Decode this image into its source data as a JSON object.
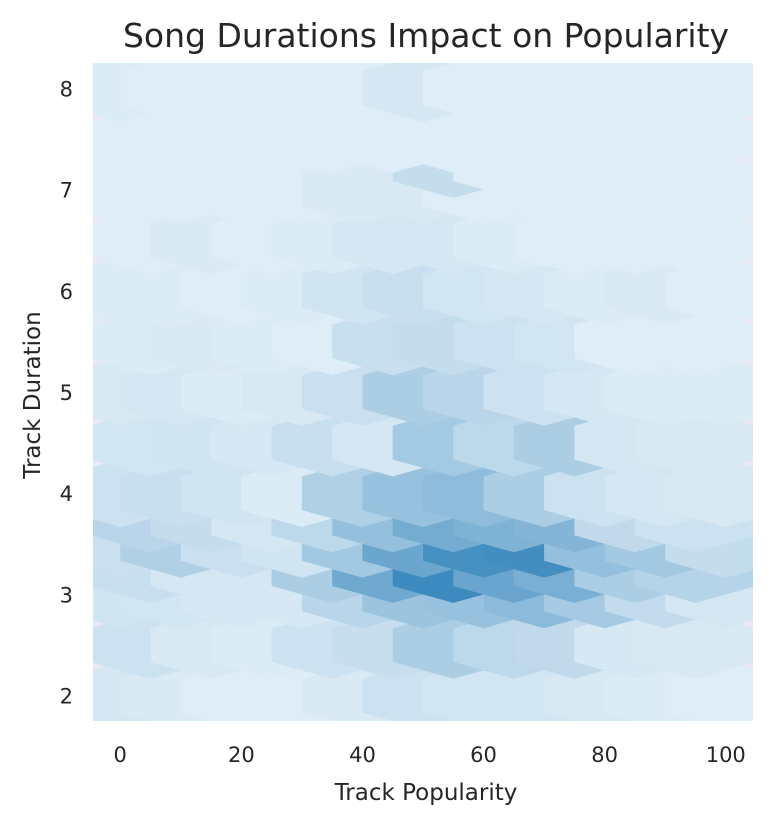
{
  "chart_data": {
    "type": "hexbin",
    "title": "Song Durations Impact on Popularity",
    "xlabel": "Track Popularity",
    "ylabel": "Track Duration",
    "xlim": [
      -4.5,
      104.5
    ],
    "ylim": [
      1.75,
      8.25
    ],
    "xticks": [
      0,
      20,
      40,
      60,
      80,
      100
    ],
    "yticks": [
      2,
      3,
      4,
      5,
      6,
      7,
      8
    ],
    "grid": false,
    "colormap": "light-to-dark blue (white to #1f77b4)",
    "background_color": "#eae9f2",
    "max_color": "#1f77b4",
    "hex_grid": {
      "x_step": 20,
      "y_step": 1,
      "x_origin": 0,
      "y_origin": 2
    },
    "bins": [
      {
        "x": 0,
        "y": 2,
        "v": 0.1
      },
      {
        "x": 10,
        "y": 2,
        "v": 0.07
      },
      {
        "x": 20,
        "y": 2,
        "v": 0.05
      },
      {
        "x": 30,
        "y": 2,
        "v": 0.05
      },
      {
        "x": 40,
        "y": 2,
        "v": 0.07
      },
      {
        "x": 50,
        "y": 2,
        "v": 0.14
      },
      {
        "x": 60,
        "y": 2,
        "v": 0.11
      },
      {
        "x": 70,
        "y": 2,
        "v": 0.11
      },
      {
        "x": 80,
        "y": 2,
        "v": 0.08
      },
      {
        "x": 90,
        "y": 2,
        "v": 0.06
      },
      {
        "x": 100,
        "y": 2,
        "v": 0.05
      },
      {
        "x": 5,
        "y": 2.5,
        "v": 0.14
      },
      {
        "x": 15,
        "y": 2.5,
        "v": 0.08
      },
      {
        "x": 25,
        "y": 2.5,
        "v": 0.06
      },
      {
        "x": 35,
        "y": 2.5,
        "v": 0.13
      },
      {
        "x": 45,
        "y": 2.5,
        "v": 0.17
      },
      {
        "x": 55,
        "y": 2.5,
        "v": 0.3
      },
      {
        "x": 65,
        "y": 2.5,
        "v": 0.22
      },
      {
        "x": 75,
        "y": 2.5,
        "v": 0.2
      },
      {
        "x": 85,
        "y": 2.5,
        "v": 0.09
      },
      {
        "x": 95,
        "y": 2.5,
        "v": 0.08
      },
      {
        "x": 0,
        "y": 3,
        "v": 0.12
      },
      {
        "x": 10,
        "y": 3,
        "v": 0.11
      },
      {
        "x": 20,
        "y": 3,
        "v": 0.09
      },
      {
        "x": 30,
        "y": 3,
        "v": 0.09
      },
      {
        "x": 40,
        "y": 3,
        "v": 0.24
      },
      {
        "x": 50,
        "y": 3,
        "v": 0.38
      },
      {
        "x": 60,
        "y": 3,
        "v": 0.4
      },
      {
        "x": 70,
        "y": 3,
        "v": 0.46
      },
      {
        "x": 80,
        "y": 3,
        "v": 0.33
      },
      {
        "x": 90,
        "y": 3,
        "v": 0.19
      },
      {
        "x": 100,
        "y": 3,
        "v": 0.1
      },
      {
        "x": 5,
        "y": 3.25,
        "v": 0.16
      },
      {
        "x": 15,
        "y": 3.25,
        "v": 0.1
      },
      {
        "x": 25,
        "y": 3.25,
        "v": 0.1
      },
      {
        "x": 35,
        "y": 3.25,
        "v": 0.3
      },
      {
        "x": 45,
        "y": 3.25,
        "v": 0.6
      },
      {
        "x": 55,
        "y": 3.25,
        "v": 0.85
      },
      {
        "x": 65,
        "y": 3.25,
        "v": 0.63
      },
      {
        "x": 75,
        "y": 3.25,
        "v": 0.55
      },
      {
        "x": 85,
        "y": 3.25,
        "v": 0.3
      },
      {
        "x": 95,
        "y": 3.25,
        "v": 0.25
      },
      {
        "x": 0,
        "y": 3.5,
        "v": 0.15
      },
      {
        "x": 10,
        "y": 3.5,
        "v": 0.28
      },
      {
        "x": 20,
        "y": 3.5,
        "v": 0.15
      },
      {
        "x": 30,
        "y": 3.5,
        "v": 0.12
      },
      {
        "x": 40,
        "y": 3.5,
        "v": 0.35
      },
      {
        "x": 50,
        "y": 3.5,
        "v": 0.62
      },
      {
        "x": 60,
        "y": 3.5,
        "v": 0.8
      },
      {
        "x": 70,
        "y": 3.5,
        "v": 0.82
      },
      {
        "x": 80,
        "y": 3.5,
        "v": 0.42
      },
      {
        "x": 90,
        "y": 3.5,
        "v": 0.35
      },
      {
        "x": 100,
        "y": 3.5,
        "v": 0.18
      },
      {
        "x": 5,
        "y": 3.75,
        "v": 0.24
      },
      {
        "x": 15,
        "y": 3.75,
        "v": 0.18
      },
      {
        "x": 25,
        "y": 3.75,
        "v": 0.1
      },
      {
        "x": 35,
        "y": 3.75,
        "v": 0.22
      },
      {
        "x": 45,
        "y": 3.75,
        "v": 0.42
      },
      {
        "x": 55,
        "y": 3.75,
        "v": 0.58
      },
      {
        "x": 65,
        "y": 3.75,
        "v": 0.52
      },
      {
        "x": 75,
        "y": 3.75,
        "v": 0.5
      },
      {
        "x": 85,
        "y": 3.75,
        "v": 0.2
      },
      {
        "x": 95,
        "y": 3.75,
        "v": 0.14
      },
      {
        "x": 0,
        "y": 4,
        "v": 0.14
      },
      {
        "x": 10,
        "y": 4,
        "v": 0.16
      },
      {
        "x": 20,
        "y": 4,
        "v": 0.12
      },
      {
        "x": 30,
        "y": 4,
        "v": 0.06
      },
      {
        "x": 40,
        "y": 4,
        "v": 0.28
      },
      {
        "x": 50,
        "y": 4,
        "v": 0.4
      },
      {
        "x": 60,
        "y": 4,
        "v": 0.44
      },
      {
        "x": 70,
        "y": 4,
        "v": 0.3
      },
      {
        "x": 80,
        "y": 4,
        "v": 0.14
      },
      {
        "x": 90,
        "y": 4,
        "v": 0.1
      },
      {
        "x": 100,
        "y": 4,
        "v": 0.08
      },
      {
        "x": 5,
        "y": 4.5,
        "v": 0.11
      },
      {
        "x": 15,
        "y": 4.5,
        "v": 0.12
      },
      {
        "x": 25,
        "y": 4.5,
        "v": 0.09
      },
      {
        "x": 35,
        "y": 4.5,
        "v": 0.16
      },
      {
        "x": 45,
        "y": 4.5,
        "v": 0.1
      },
      {
        "x": 55,
        "y": 4.5,
        "v": 0.34
      },
      {
        "x": 65,
        "y": 4.5,
        "v": 0.22
      },
      {
        "x": 75,
        "y": 4.5,
        "v": 0.3
      },
      {
        "x": 85,
        "y": 4.5,
        "v": 0.1
      },
      {
        "x": 95,
        "y": 4.5,
        "v": 0.08
      },
      {
        "x": 0,
        "y": 5,
        "v": 0.08
      },
      {
        "x": 10,
        "y": 5,
        "v": 0.1
      },
      {
        "x": 20,
        "y": 5,
        "v": 0.06
      },
      {
        "x": 30,
        "y": 5,
        "v": 0.08
      },
      {
        "x": 40,
        "y": 5,
        "v": 0.15
      },
      {
        "x": 50,
        "y": 5,
        "v": 0.3
      },
      {
        "x": 60,
        "y": 5,
        "v": 0.24
      },
      {
        "x": 70,
        "y": 5,
        "v": 0.14
      },
      {
        "x": 80,
        "y": 5,
        "v": 0.09
      },
      {
        "x": 90,
        "y": 5,
        "v": 0.06
      },
      {
        "x": 100,
        "y": 5,
        "v": 0.06
      },
      {
        "x": 5,
        "y": 5.5,
        "v": 0.06
      },
      {
        "x": 15,
        "y": 5.5,
        "v": 0.07
      },
      {
        "x": 25,
        "y": 5.5,
        "v": 0.06
      },
      {
        "x": 35,
        "y": 5.5,
        "v": 0.05
      },
      {
        "x": 45,
        "y": 5.5,
        "v": 0.16
      },
      {
        "x": 55,
        "y": 5.5,
        "v": 0.18
      },
      {
        "x": 65,
        "y": 5.5,
        "v": 0.14
      },
      {
        "x": 75,
        "y": 5.5,
        "v": 0.11
      },
      {
        "x": 85,
        "y": 5.5,
        "v": 0.05
      },
      {
        "x": 95,
        "y": 5.5,
        "v": 0.05
      },
      {
        "x": 0,
        "y": 6,
        "v": 0.06
      },
      {
        "x": 10,
        "y": 6,
        "v": 0.06
      },
      {
        "x": 20,
        "y": 6,
        "v": 0.05
      },
      {
        "x": 30,
        "y": 6,
        "v": 0.06
      },
      {
        "x": 40,
        "y": 6,
        "v": 0.12
      },
      {
        "x": 50,
        "y": 6,
        "v": 0.16
      },
      {
        "x": 60,
        "y": 6,
        "v": 0.11
      },
      {
        "x": 70,
        "y": 6,
        "v": 0.1
      },
      {
        "x": 80,
        "y": 6,
        "v": 0.06
      },
      {
        "x": 90,
        "y": 6,
        "v": 0.07
      },
      {
        "x": 100,
        "y": 6,
        "v": 0.05
      },
      {
        "x": 5,
        "y": 6.5,
        "v": 0.05
      },
      {
        "x": 15,
        "y": 6.5,
        "v": 0.07
      },
      {
        "x": 25,
        "y": 6.5,
        "v": 0.05
      },
      {
        "x": 35,
        "y": 6.5,
        "v": 0.06
      },
      {
        "x": 45,
        "y": 6.5,
        "v": 0.1
      },
      {
        "x": 55,
        "y": 6.5,
        "v": 0.1
      },
      {
        "x": 65,
        "y": 6.5,
        "v": 0.06
      },
      {
        "x": 75,
        "y": 6.5,
        "v": 0.05
      },
      {
        "x": 85,
        "y": 6.5,
        "v": 0.05
      },
      {
        "x": 95,
        "y": 6.5,
        "v": 0.05
      },
      {
        "x": 0,
        "y": 7,
        "v": 0.05
      },
      {
        "x": 10,
        "y": 7,
        "v": 0.05
      },
      {
        "x": 20,
        "y": 7,
        "v": 0.05
      },
      {
        "x": 30,
        "y": 7,
        "v": 0.05
      },
      {
        "x": 40,
        "y": 7,
        "v": 0.07
      },
      {
        "x": 50,
        "y": 7,
        "v": 0.08
      },
      {
        "x": 60,
        "y": 7,
        "v": 0.05
      },
      {
        "x": 70,
        "y": 7,
        "v": 0.05
      },
      {
        "x": 80,
        "y": 7,
        "v": 0.05
      },
      {
        "x": 90,
        "y": 7,
        "v": 0.05
      },
      {
        "x": 100,
        "y": 7,
        "v": 0.05
      },
      {
        "x": 5,
        "y": 7.25,
        "v": 0.05
      },
      {
        "x": 55,
        "y": 7.25,
        "v": 0.18
      },
      {
        "x": 65,
        "y": 7.25,
        "v": 0.05
      },
      {
        "x": 5,
        "y": 7.5,
        "v": 0.05
      },
      {
        "x": 15,
        "y": 7.5,
        "v": 0.05
      },
      {
        "x": 25,
        "y": 7.5,
        "v": 0.05
      },
      {
        "x": 35,
        "y": 7.5,
        "v": 0.05
      },
      {
        "x": 45,
        "y": 7.5,
        "v": 0.05
      },
      {
        "x": 55,
        "y": 7.5,
        "v": 0.05
      },
      {
        "x": 65,
        "y": 7.5,
        "v": 0.05
      },
      {
        "x": 75,
        "y": 7.5,
        "v": 0.05
      },
      {
        "x": 85,
        "y": 7.5,
        "v": 0.05
      },
      {
        "x": 95,
        "y": 7.5,
        "v": 0.05
      },
      {
        "x": 0,
        "y": 8,
        "v": 0.06
      },
      {
        "x": 10,
        "y": 8,
        "v": 0.05
      },
      {
        "x": 20,
        "y": 8,
        "v": 0.05
      },
      {
        "x": 30,
        "y": 8,
        "v": 0.05
      },
      {
        "x": 40,
        "y": 8,
        "v": 0.05
      },
      {
        "x": 50,
        "y": 8,
        "v": 0.1
      },
      {
        "x": 60,
        "y": 8,
        "v": 0.05
      },
      {
        "x": 70,
        "y": 8,
        "v": 0.05
      },
      {
        "x": 80,
        "y": 8,
        "v": 0.05
      },
      {
        "x": 90,
        "y": 8,
        "v": 0.05
      },
      {
        "x": 100,
        "y": 8,
        "v": 0.05
      }
    ]
  }
}
